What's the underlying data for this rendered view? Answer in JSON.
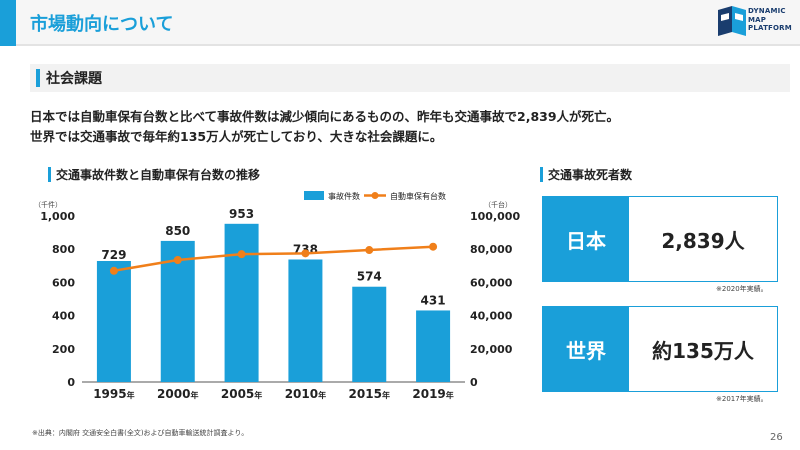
{
  "header": {
    "title": "市場動向について",
    "logo": [
      "DYNAMIC",
      "MAP",
      "PLATFORM"
    ]
  },
  "section": {
    "title": "社会課題"
  },
  "lead": [
    "日本では自動車保有台数と比べて事故件数は減少傾向にあるものの、昨年も交通事故で2,839人が死亡。",
    "世界では交通事故で毎年約135万人が死亡しており、大きな社会課題に。"
  ],
  "chart_section": {
    "title": "交通事故件数と自動車保有台数の推移"
  },
  "chart_data": {
    "type": "bar",
    "categories": [
      "1995",
      "2000",
      "2005",
      "2010",
      "2015",
      "2019"
    ],
    "category_suffix": "年",
    "series": [
      {
        "name": "事故件数",
        "type": "bar",
        "axis": "left",
        "values": [
          729,
          850,
          953,
          738,
          574,
          431
        ]
      },
      {
        "name": "自動車保有台数",
        "type": "line",
        "axis": "right",
        "values": [
          67000,
          73500,
          77000,
          77500,
          79500,
          81500
        ]
      }
    ],
    "left_axis": {
      "unit": "（千件）",
      "ylim": [
        0,
        1000
      ],
      "ticks": [
        "0",
        "200",
        "400",
        "600",
        "800",
        "1,000"
      ]
    },
    "right_axis": {
      "unit": "（千台）",
      "ylim": [
        0,
        100000
      ],
      "ticks": [
        "0",
        "20,000",
        "40,000",
        "60,000",
        "80,000",
        "100,000"
      ]
    },
    "bar_color": "#1a9fd9",
    "line_color": "#f07f1a",
    "legend_position": "top-right"
  },
  "deaths": {
    "title": "交通事故死者数",
    "japan": {
      "label": "日本",
      "value": "2,839人",
      "note": "※2020年実績。"
    },
    "world": {
      "label": "世界",
      "value": "約135万人",
      "note": "※2017年実績。"
    }
  },
  "footer": {
    "source": "※出典：内閣府 交通安全白書(全文)および自動車輸送統計調査より。",
    "page": "26"
  }
}
